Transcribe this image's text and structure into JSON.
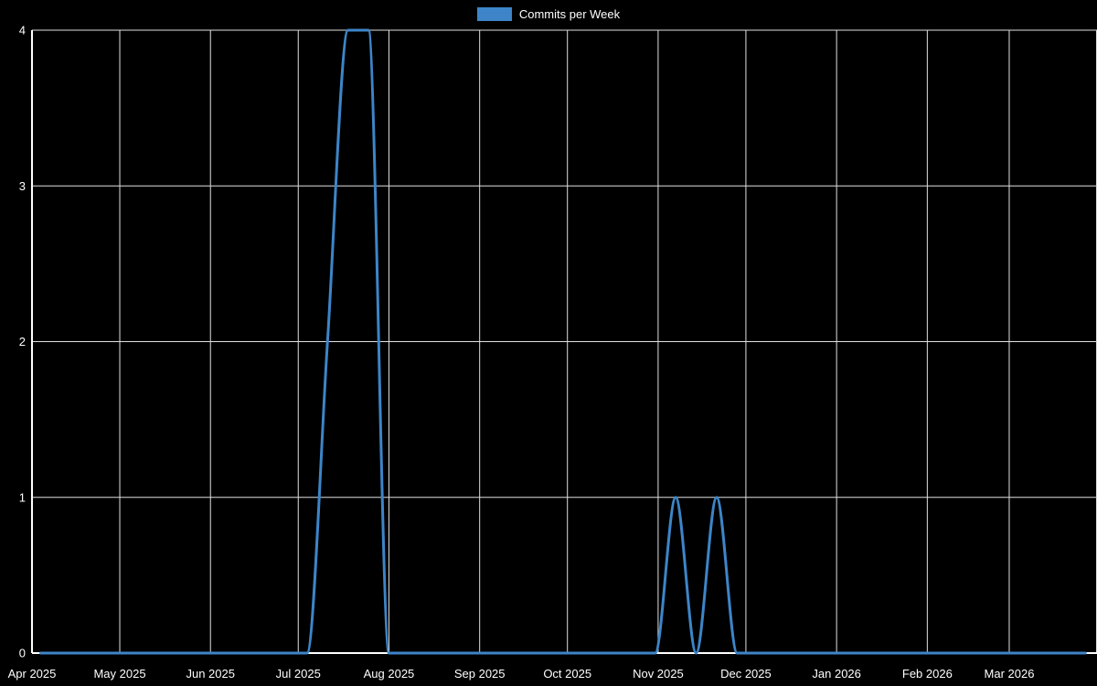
{
  "colors": {
    "background": "#000000",
    "grid": "#e0e0e0",
    "axis": "#ffffff",
    "text": "#ffffff",
    "line": "#3d85c8"
  },
  "legend": {
    "position": "top-center"
  },
  "chart_data": {
    "type": "line",
    "title": "Commits per Week",
    "xlabel": "",
    "ylabel": "",
    "ylim": [
      0,
      4
    ],
    "yticks": [
      0,
      1,
      2,
      3,
      4
    ],
    "grid": true,
    "legend_position": "top-center",
    "interpolation": "monotone",
    "x_domain": [
      "2025-04-01",
      "2026-03-31"
    ],
    "x_ticks": [
      {
        "label": "Apr 2025",
        "date": "2025-04-01"
      },
      {
        "label": "May 2025",
        "date": "2025-05-01"
      },
      {
        "label": "Jun 2025",
        "date": "2025-06-01"
      },
      {
        "label": "Jul 2025",
        "date": "2025-07-01"
      },
      {
        "label": "Aug 2025",
        "date": "2025-08-01"
      },
      {
        "label": "Sep 2025",
        "date": "2025-09-01"
      },
      {
        "label": "Oct 2025",
        "date": "2025-10-01"
      },
      {
        "label": "Nov 2025",
        "date": "2025-11-01"
      },
      {
        "label": "Dec 2025",
        "date": "2025-12-01"
      },
      {
        "label": "Jan 2026",
        "date": "2026-01-01"
      },
      {
        "label": "Feb 2026",
        "date": "2026-02-01"
      },
      {
        "label": "Mar 2026",
        "date": "2026-03-01"
      }
    ],
    "series": [
      {
        "name": "Commits per Week",
        "color": "#3d85c8",
        "x": [
          "2025-04-04",
          "2025-04-11",
          "2025-04-18",
          "2025-04-25",
          "2025-05-02",
          "2025-05-09",
          "2025-05-16",
          "2025-05-23",
          "2025-05-30",
          "2025-06-06",
          "2025-06-13",
          "2025-06-20",
          "2025-06-27",
          "2025-07-04",
          "2025-07-11",
          "2025-07-18",
          "2025-07-25",
          "2025-08-01",
          "2025-08-08",
          "2025-08-15",
          "2025-08-22",
          "2025-08-29",
          "2025-09-05",
          "2025-09-12",
          "2025-09-19",
          "2025-09-26",
          "2025-10-03",
          "2025-10-10",
          "2025-10-17",
          "2025-10-24",
          "2025-10-31",
          "2025-11-07",
          "2025-11-14",
          "2025-11-21",
          "2025-11-28",
          "2025-12-05",
          "2025-12-12",
          "2025-12-19",
          "2025-12-26",
          "2026-01-02",
          "2026-01-09",
          "2026-01-16",
          "2026-01-23",
          "2026-01-30",
          "2026-02-06",
          "2026-02-13",
          "2026-02-20",
          "2026-02-27",
          "2026-03-06",
          "2026-03-13",
          "2026-03-20",
          "2026-03-27"
        ],
        "values": [
          0,
          0,
          0,
          0,
          0,
          0,
          0,
          0,
          0,
          0,
          0,
          0,
          0,
          0,
          2,
          4,
          4,
          0,
          0,
          0,
          0,
          0,
          0,
          0,
          0,
          0,
          0,
          0,
          0,
          0,
          0,
          1,
          0,
          1,
          0,
          0,
          0,
          0,
          0,
          0,
          0,
          0,
          0,
          0,
          0,
          0,
          0,
          0,
          0,
          0,
          0,
          0
        ]
      }
    ]
  }
}
